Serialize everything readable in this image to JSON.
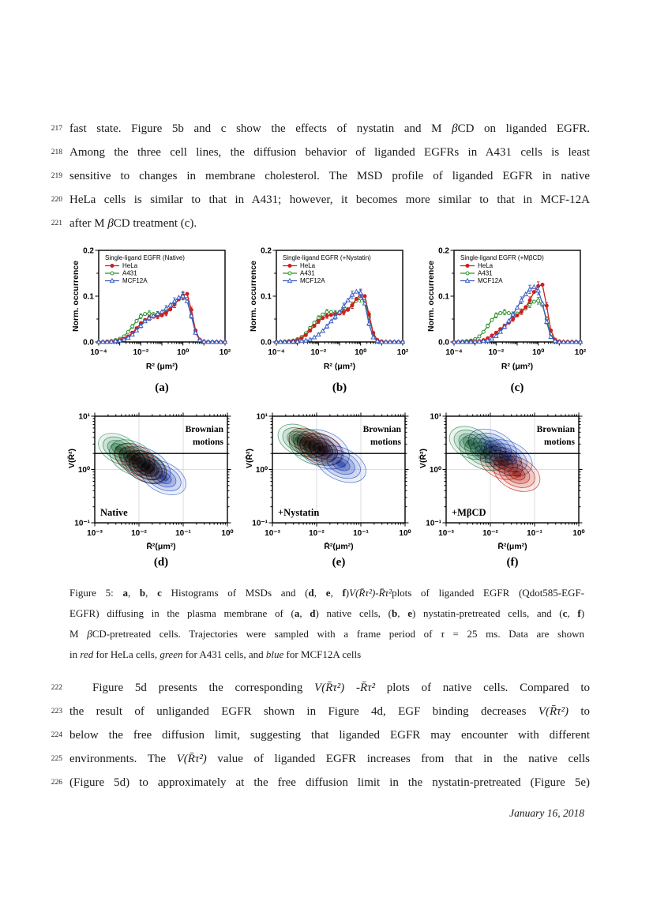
{
  "page": {
    "line_numbers_p1": [
      "217",
      "218",
      "219",
      "220",
      "221"
    ],
    "paragraph1": [
      [
        {
          "t": "fast state.  Figure 5b and c show the effects of nystatin and M "
        },
        {
          "t": "β",
          "i": 1
        },
        {
          "t": "CD on liganded EGFR."
        }
      ],
      [
        {
          "t": "Among the three cell lines, the diffusion behavior of liganded EGFRs in A431 cells is least"
        }
      ],
      [
        {
          "t": "sensitive to changes in membrane cholesterol. The MSD profile of liganded EGFR in native"
        }
      ],
      [
        {
          "t": "HeLa cells is similar to that in A431; however, it becomes more similar to that in MCF-12A"
        }
      ],
      [
        {
          "t": "after M "
        },
        {
          "t": "β",
          "i": 1
        },
        {
          "t": "CD treatment (c)."
        }
      ]
    ],
    "caption_lines": [
      [
        {
          "t": "Figure 5:  "
        },
        {
          "t": "a",
          "b": 1
        },
        {
          "t": ", "
        },
        {
          "t": "b",
          "b": 1
        },
        {
          "t": ", "
        },
        {
          "t": "c",
          "b": 1
        },
        {
          "t": " Histograms of MSDs and ("
        },
        {
          "t": "d",
          "b": 1
        },
        {
          "t": ", "
        },
        {
          "t": "e",
          "b": 1
        },
        {
          "t": ", "
        },
        {
          "t": "f",
          "b": 1
        },
        {
          "t": ")"
        },
        {
          "t": "V(R̄τ²)",
          "i": 1
        },
        {
          "t": "-"
        },
        {
          "t": "R̄τ²",
          "i": 1
        },
        {
          "t": "plots of liganded EGFR (Qdot585-EGF-"
        }
      ],
      [
        {
          "t": "EGFR) diffusing in the plasma membrane of ("
        },
        {
          "t": "a",
          "b": 1
        },
        {
          "t": ", "
        },
        {
          "t": "d",
          "b": 1
        },
        {
          "t": ") native cells, ("
        },
        {
          "t": "b",
          "b": 1
        },
        {
          "t": ", "
        },
        {
          "t": "e",
          "b": 1
        },
        {
          "t": ") nystatin-pretreated cells, and ("
        },
        {
          "t": "c",
          "b": 1
        },
        {
          "t": ", "
        },
        {
          "t": "f",
          "b": 1
        },
        {
          "t": ")"
        }
      ],
      [
        {
          "t": "M "
        },
        {
          "t": "β",
          "i": 1
        },
        {
          "t": "CD-pretreated cells.  Trajectories were sampled with a frame period of "
        },
        {
          "t": "τ",
          "i": 1
        },
        {
          "t": " = 25 ms.  Data are shown"
        }
      ],
      [
        {
          "t": "in "
        },
        {
          "t": "red",
          "i": 1
        },
        {
          "t": " for HeLa cells, "
        },
        {
          "t": "green",
          "i": 1
        },
        {
          "t": " for A431 cells, and "
        },
        {
          "t": "blue",
          "i": 1
        },
        {
          "t": " for MCF12A cells"
        }
      ]
    ],
    "line_numbers_p2": [
      "222",
      "223",
      "224",
      "225",
      "226"
    ],
    "paragraph2": [
      [
        {
          "t": "Figure 5d presents the corresponding "
        },
        {
          "t": "V(R̄τ²)",
          "i": 1
        },
        {
          "t": " -"
        },
        {
          "t": "R̄τ²",
          "i": 1
        },
        {
          "t": " plots of native cells.  Compared to"
        }
      ],
      [
        {
          "t": "the result of unliganded EGFR shown in Figure 4d, EGF binding decreases "
        },
        {
          "t": "V(R̄τ²)",
          "i": 1
        },
        {
          "t": " to"
        }
      ],
      [
        {
          "t": "below the free diffusion limit, suggesting that liganded EGFR may encounter with different"
        }
      ],
      [
        {
          "t": "environments.  The  "
        },
        {
          "t": "V(R̄τ²)",
          "i": 1
        },
        {
          "t": " value of liganded EGFR increases from that in the native cells"
        }
      ],
      [
        {
          "t": "(Figure 5d) to approximately at the free diffusion limit in the nystatin-pretreated (Figure 5e)"
        }
      ]
    ],
    "date": "January 16, 2018"
  },
  "colors": {
    "hela": "#cc2020",
    "a431": "#2e8f2e",
    "mcf12a": "#3a5ec4",
    "grid": "#ccd6de",
    "axis": "#000000"
  },
  "chart_data": [
    {
      "type": "line",
      "id": "a",
      "panel_label": "(a)",
      "legend_title": "Single-ligand EGFR (Native)",
      "xlabel": "R² (μm²)",
      "ylabel": "Norm. occurrence",
      "xscale": "log",
      "xlim_exp": [
        -4,
        2
      ],
      "ylim": [
        0,
        0.2
      ],
      "xtick_label_exp": [
        -4,
        -2,
        0,
        2
      ],
      "yticks": [
        0,
        0.1,
        0.2
      ],
      "logx_start": -4,
      "logx_step": 0.2,
      "series": [
        {
          "name": "HeLa",
          "color": "#cc2020",
          "marker": "circle-filled",
          "y": [
            0,
            0,
            0,
            0.001,
            0.002,
            0.004,
            0.007,
            0.012,
            0.02,
            0.03,
            0.04,
            0.048,
            0.053,
            0.055,
            0.056,
            0.058,
            0.063,
            0.071,
            0.082,
            0.093,
            0.102,
            0.105,
            0.07,
            0.025,
            0.005,
            0.001,
            0,
            0,
            0,
            0,
            0
          ]
        },
        {
          "name": "A431",
          "color": "#2e8f2e",
          "marker": "circle-open",
          "y": [
            0,
            0,
            0.001,
            0.002,
            0.004,
            0.007,
            0.012,
            0.022,
            0.034,
            0.046,
            0.056,
            0.061,
            0.062,
            0.061,
            0.06,
            0.062,
            0.066,
            0.072,
            0.082,
            0.093,
            0.1,
            0.094,
            0.058,
            0.02,
            0.004,
            0.001,
            0,
            0,
            0,
            0,
            0
          ]
        },
        {
          "name": "MCF12A",
          "color": "#3a5ec4",
          "marker": "triangle-open",
          "y": [
            0,
            0,
            0,
            0.001,
            0.002,
            0.003,
            0.005,
            0.009,
            0.016,
            0.025,
            0.035,
            0.045,
            0.052,
            0.057,
            0.061,
            0.066,
            0.073,
            0.081,
            0.089,
            0.097,
            0.1,
            0.089,
            0.057,
            0.02,
            0.004,
            0.001,
            0,
            0,
            0,
            0,
            0
          ]
        }
      ]
    },
    {
      "type": "line",
      "id": "b",
      "panel_label": "(b)",
      "legend_title": "Single-ligand EGFR (+Nystatin)",
      "xlabel": "R² (μm²)",
      "ylabel": "Norm. occurrence",
      "xscale": "log",
      "xlim_exp": [
        -4,
        2
      ],
      "ylim": [
        0,
        0.2
      ],
      "xtick_label_exp": [
        -4,
        -2,
        0,
        2
      ],
      "yticks": [
        0,
        0.1,
        0.2
      ],
      "logx_start": -4,
      "logx_step": 0.2,
      "series": [
        {
          "name": "HeLa",
          "color": "#cc2020",
          "marker": "circle-filled",
          "y": [
            0,
            0,
            0,
            0.001,
            0.002,
            0.004,
            0.008,
            0.015,
            0.025,
            0.035,
            0.045,
            0.052,
            0.057,
            0.059,
            0.06,
            0.062,
            0.065,
            0.07,
            0.08,
            0.094,
            0.105,
            0.1,
            0.06,
            0.02,
            0.004,
            0.001,
            0,
            0,
            0,
            0,
            0
          ]
        },
        {
          "name": "A431",
          "color": "#2e8f2e",
          "marker": "circle-open",
          "y": [
            0,
            0,
            0.001,
            0.002,
            0.003,
            0.006,
            0.011,
            0.019,
            0.03,
            0.042,
            0.052,
            0.06,
            0.065,
            0.065,
            0.063,
            0.065,
            0.068,
            0.072,
            0.08,
            0.09,
            0.095,
            0.089,
            0.054,
            0.018,
            0.003,
            0.001,
            0,
            0,
            0,
            0,
            0
          ]
        },
        {
          "name": "MCF12A",
          "color": "#3a5ec4",
          "marker": "triangle-open",
          "y": [
            0,
            0,
            0,
            0,
            0.001,
            0.001,
            0.002,
            0.003,
            0.005,
            0.01,
            0.016,
            0.024,
            0.034,
            0.045,
            0.055,
            0.065,
            0.078,
            0.091,
            0.103,
            0.11,
            0.107,
            0.084,
            0.04,
            0.01,
            0.002,
            0,
            0,
            0,
            0,
            0,
            0
          ]
        }
      ]
    },
    {
      "type": "line",
      "id": "c",
      "panel_label": "(c)",
      "legend_title": "Single-ligand EGFR (+MβCD)",
      "xlabel": "R² (μm²)",
      "ylabel": "Norm. occurrence",
      "xscale": "log",
      "xlim_exp": [
        -4,
        2
      ],
      "ylim": [
        0,
        0.2
      ],
      "xtick_label_exp": [
        -4,
        -2,
        0,
        2
      ],
      "yticks": [
        0,
        0.1,
        0.2
      ],
      "logx_start": -4,
      "logx_step": 0.2,
      "series": [
        {
          "name": "HeLa",
          "color": "#cc2020",
          "marker": "circle-filled",
          "y": [
            0,
            0,
            0,
            0,
            0.001,
            0.001,
            0.002,
            0.004,
            0.008,
            0.014,
            0.02,
            0.028,
            0.035,
            0.042,
            0.05,
            0.058,
            0.066,
            0.076,
            0.091,
            0.109,
            0.122,
            0.125,
            0.079,
            0.025,
            0.005,
            0.001,
            0,
            0,
            0,
            0,
            0
          ]
        },
        {
          "name": "A431",
          "color": "#2e8f2e",
          "marker": "circle-open",
          "y": [
            0,
            0,
            0.001,
            0.002,
            0.003,
            0.006,
            0.012,
            0.022,
            0.035,
            0.048,
            0.058,
            0.063,
            0.065,
            0.063,
            0.06,
            0.062,
            0.066,
            0.073,
            0.082,
            0.088,
            0.09,
            0.08,
            0.05,
            0.017,
            0.003,
            0.001,
            0,
            0,
            0,
            0,
            0
          ]
        },
        {
          "name": "MCF12A",
          "color": "#3a5ec4",
          "marker": "triangle-open",
          "y": [
            0,
            0,
            0,
            0,
            0,
            0.001,
            0.001,
            0.002,
            0.003,
            0.007,
            0.013,
            0.022,
            0.033,
            0.046,
            0.06,
            0.075,
            0.091,
            0.104,
            0.115,
            0.12,
            0.112,
            0.084,
            0.044,
            0.011,
            0.002,
            0,
            0,
            0,
            0,
            0,
            0
          ]
        }
      ]
    },
    {
      "type": "contour-density",
      "id": "d",
      "panel_label": "(d)",
      "condition_label": "Native",
      "annotation": [
        "Brownian",
        "motions"
      ],
      "xlabel": "R̄²(μm²)",
      "ylabel": "V(R̄²)",
      "xlim_exp": [
        -3,
        0
      ],
      "ylim_exp": [
        -1,
        1
      ],
      "xtick_label_exp": [
        -3,
        -2,
        -1,
        0
      ],
      "ytick_label_exp": [
        -1,
        0,
        1
      ],
      "free_diffusion_line": 2,
      "clusters": [
        {
          "name": "A431",
          "color": "#2e8b57",
          "blobs": [
            [
              -2.45,
              0.38,
              0.5,
              0.26,
              27
            ],
            [
              -2.15,
              0.22,
              0.55,
              0.3,
              27
            ],
            [
              -1.85,
              0.05,
              0.5,
              0.27,
              27
            ]
          ]
        },
        {
          "name": "HeLa",
          "color": "#c42818",
          "blobs": [
            [
              -2.1,
              0.2,
              0.48,
              0.26,
              27
            ],
            [
              -1.8,
              0.02,
              0.45,
              0.25,
              27
            ]
          ]
        },
        {
          "name": "MCF12A",
          "color": "#3a5ec4",
          "blobs": [
            [
              -1.85,
              0.08,
              0.6,
              0.3,
              27
            ],
            [
              -1.45,
              -0.15,
              0.55,
              0.28,
              27
            ]
          ]
        }
      ]
    },
    {
      "type": "contour-density",
      "id": "e",
      "panel_label": "(e)",
      "condition_label": "+Nystatin",
      "annotation": [
        "Brownian",
        "motions"
      ],
      "xlabel": "R̄²(μm²)",
      "ylabel": "V(R̄²)",
      "xlim_exp": [
        -3,
        0
      ],
      "ylim_exp": [
        -1,
        1
      ],
      "xtick_label_exp": [
        -3,
        -2,
        -1,
        0
      ],
      "ytick_label_exp": [
        -1,
        0,
        1
      ],
      "free_diffusion_line": 2,
      "clusters": [
        {
          "name": "A431",
          "color": "#2e8b57",
          "blobs": [
            [
              -2.4,
              0.55,
              0.5,
              0.27,
              25
            ],
            [
              -2.1,
              0.42,
              0.55,
              0.3,
              25
            ]
          ]
        },
        {
          "name": "HeLa",
          "color": "#c42818",
          "blobs": [
            [
              -2.2,
              0.5,
              0.45,
              0.25,
              25
            ],
            [
              -1.9,
              0.38,
              0.5,
              0.28,
              25
            ]
          ]
        },
        {
          "name": "MCF12A",
          "color": "#3a5ec4",
          "blobs": [
            [
              -1.85,
              0.38,
              0.62,
              0.33,
              25
            ],
            [
              -1.45,
              0.1,
              0.6,
              0.3,
              25
            ]
          ]
        }
      ]
    },
    {
      "type": "contour-density",
      "id": "f",
      "panel_label": "(f)",
      "condition_label": "+MβCD",
      "annotation": [
        "Brownian",
        "motions"
      ],
      "xlabel": "R̄²(μm²)",
      "ylabel": "V(R̄²)",
      "xlim_exp": [
        -3,
        0
      ],
      "ylim_exp": [
        -1,
        1
      ],
      "xtick_label_exp": [
        -3,
        -2,
        -1,
        0
      ],
      "ytick_label_exp": [
        -1,
        0,
        1
      ],
      "free_diffusion_line": 2,
      "clusters": [
        {
          "name": "A431",
          "color": "#2e8b57",
          "blobs": [
            [
              -2.45,
              0.5,
              0.5,
              0.28,
              25
            ],
            [
              -2.15,
              0.32,
              0.58,
              0.3,
              25
            ]
          ]
        },
        {
          "name": "MCF12A",
          "color": "#3a5ec4",
          "blobs": [
            [
              -1.95,
              0.42,
              0.58,
              0.3,
              25
            ],
            [
              -1.6,
              0.22,
              0.58,
              0.3,
              25
            ]
          ]
        },
        {
          "name": "HeLa",
          "color": "#c42818",
          "blobs": [
            [
              -1.75,
              0.12,
              0.5,
              0.28,
              25
            ],
            [
              -1.4,
              -0.08,
              0.55,
              0.3,
              25
            ]
          ]
        }
      ]
    }
  ]
}
